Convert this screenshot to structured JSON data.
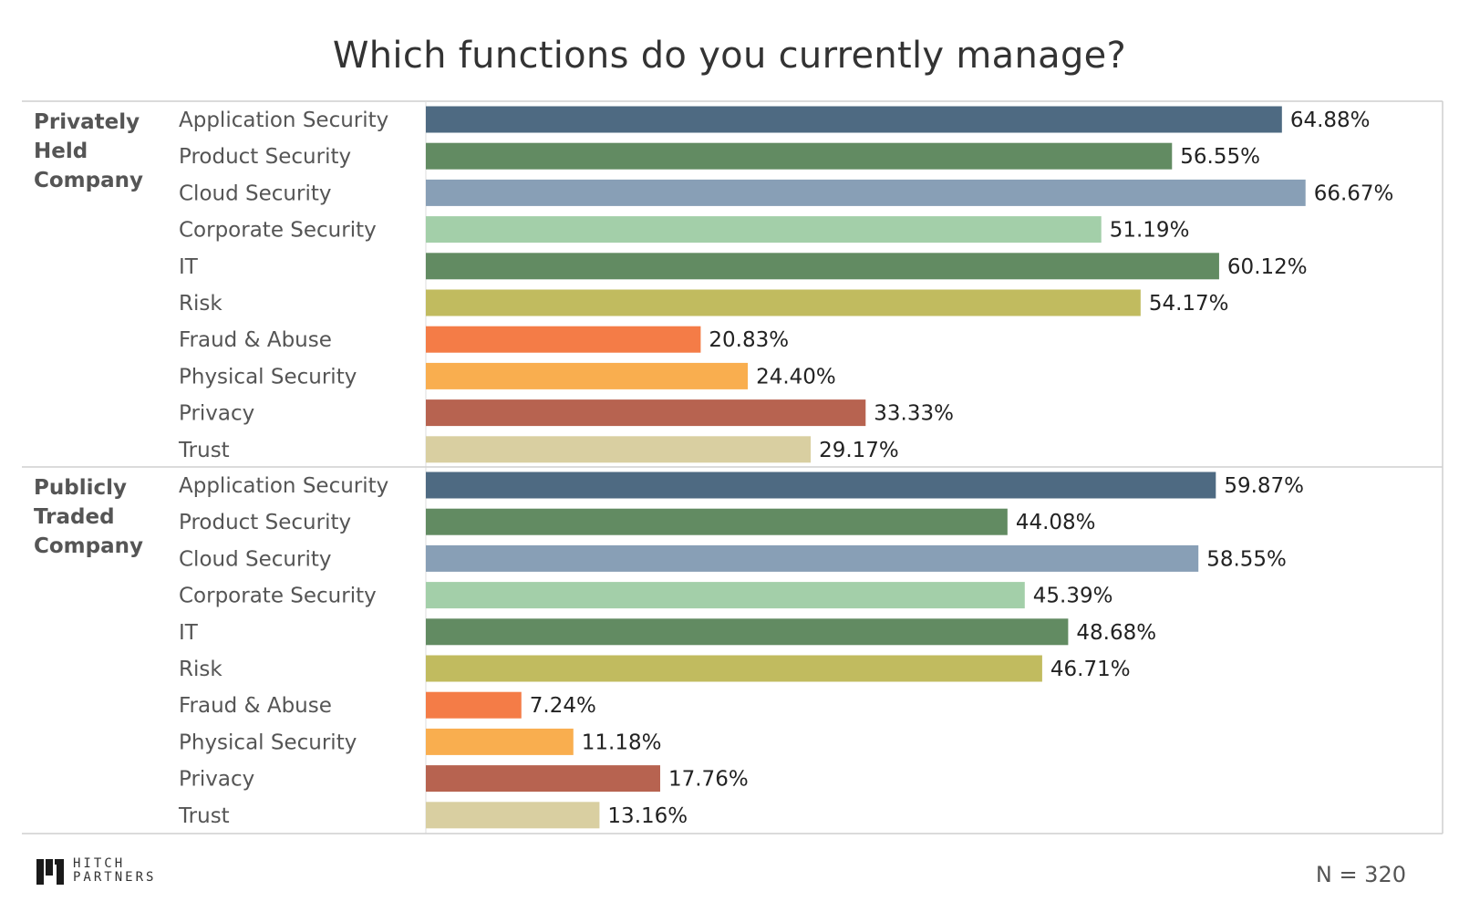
{
  "title": "Which functions do you currently manage?",
  "footnote": "N = 320",
  "logo": {
    "line1": "HITCH",
    "line2": "PARTNERS"
  },
  "colors": {
    "Application Security": "#4e6a82",
    "Product Security": "#628b62",
    "Cloud Security": "#889fb6",
    "Corporate Security": "#a3cfa9",
    "IT": "#628b62",
    "Risk": "#c1bb5f",
    "Fraud & Abuse": "#f47c47",
    "Physical Security": "#f9ae4f",
    "Privacy": "#b76350",
    "Trust": "#d9cfa1"
  },
  "chart_data": {
    "type": "bar",
    "orientation": "horizontal",
    "title": "Which functions do you currently manage?",
    "xlim": [
      0,
      75
    ],
    "unit": "%",
    "groups": [
      {
        "name": "Privately Held Company",
        "name_lines": [
          "Privately",
          "Held",
          "Company"
        ],
        "categories": [
          "Application Security",
          "Product Security",
          "Cloud Security",
          "Corporate Security",
          "IT",
          "Risk",
          "Fraud & Abuse",
          "Physical Security",
          "Privacy",
          "Trust"
        ],
        "values": [
          64.88,
          56.55,
          66.67,
          51.19,
          60.12,
          54.17,
          20.83,
          24.4,
          33.33,
          29.17
        ],
        "labels": [
          "64.88%",
          "56.55%",
          "66.67%",
          "51.19%",
          "60.12%",
          "54.17%",
          "20.83%",
          "24.40%",
          "33.33%",
          "29.17%"
        ]
      },
      {
        "name": "Publicly Traded Company",
        "name_lines": [
          "Publicly",
          "Traded",
          "Company"
        ],
        "categories": [
          "Application Security",
          "Product Security",
          "Cloud Security",
          "Corporate Security",
          "IT",
          "Risk",
          "Fraud & Abuse",
          "Physical Security",
          "Privacy",
          "Trust"
        ],
        "values": [
          59.87,
          44.08,
          58.55,
          45.39,
          48.68,
          46.71,
          7.24,
          11.18,
          17.76,
          13.16
        ],
        "labels": [
          "59.87%",
          "44.08%",
          "58.55%",
          "45.39%",
          "48.68%",
          "46.71%",
          "7.24%",
          "11.18%",
          "17.76%",
          "13.16%"
        ]
      }
    ]
  }
}
